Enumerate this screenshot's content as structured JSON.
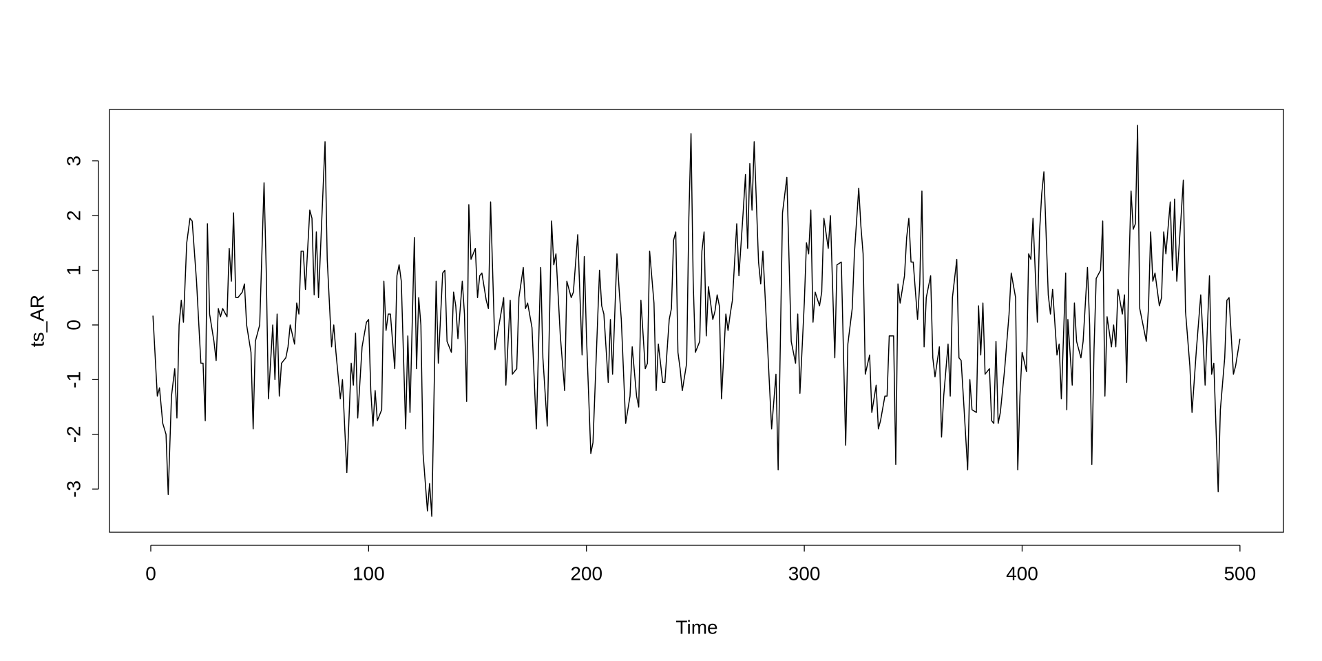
{
  "chart_data": {
    "type": "line",
    "xlabel": "Time",
    "ylabel": "ts_AR",
    "color": "#000000",
    "xlim": [
      -18.96,
      519.96
    ],
    "xticks": [
      0,
      100,
      200,
      300,
      400,
      500
    ],
    "ylim": [
      -3.79,
      3.94
    ],
    "yticks": [
      -3,
      -2,
      -1,
      0,
      1,
      2,
      3
    ],
    "x": [
      1,
      3,
      4,
      5.5,
      7,
      8,
      9.5,
      11,
      12,
      13,
      14,
      15,
      16.5,
      18,
      19,
      21,
      23,
      24,
      25,
      26,
      27,
      29,
      30,
      31,
      32,
      33,
      35,
      36,
      37,
      38,
      39,
      40,
      42,
      43,
      44,
      46,
      47,
      48,
      50,
      52,
      53,
      54,
      56,
      57,
      58,
      59,
      60,
      62,
      63,
      64,
      66,
      67,
      68,
      69,
      70,
      71,
      73,
      74,
      75,
      76,
      77,
      79,
      80,
      81,
      83,
      84,
      85,
      87,
      88,
      90,
      92,
      93,
      94,
      95,
      97,
      99,
      100,
      101,
      102,
      103,
      104,
      106,
      107,
      108,
      109,
      110,
      112,
      113,
      114,
      115,
      117,
      118,
      119,
      121,
      122,
      123,
      124,
      125,
      127,
      128,
      129,
      131,
      132,
      134,
      135,
      136,
      138,
      139,
      140,
      141,
      143,
      144,
      145,
      146,
      147,
      149,
      150,
      151,
      152,
      154,
      155,
      156,
      158,
      159,
      162,
      163,
      165,
      166,
      168,
      169,
      171,
      172,
      173,
      175,
      177,
      179,
      180,
      182,
      184,
      185,
      186,
      188,
      190,
      191,
      193,
      194,
      196,
      198,
      199,
      200,
      202,
      203,
      206,
      207,
      208,
      210,
      211,
      212,
      214,
      215,
      216,
      218,
      220,
      221,
      223,
      224,
      225,
      227,
      228,
      229,
      231,
      232,
      233,
      235,
      236,
      238,
      239,
      240,
      241,
      242,
      243,
      244,
      246,
      247,
      248,
      249,
      250,
      252,
      253,
      254,
      255,
      256,
      258,
      259,
      260,
      261,
      262,
      264,
      265,
      266,
      267,
      269,
      270,
      272,
      273,
      274,
      275,
      276,
      277,
      279,
      280,
      281,
      285,
      287,
      288,
      289,
      290,
      292,
      294,
      296,
      297,
      298,
      300,
      301,
      302,
      303,
      304,
      305,
      307,
      308,
      309,
      311,
      312,
      313,
      314,
      315,
      317,
      319,
      320,
      322,
      323,
      325,
      326,
      327,
      328,
      330,
      331,
      333,
      334,
      335,
      337,
      338,
      339,
      341,
      342,
      343,
      344,
      346,
      347,
      348,
      349,
      350,
      352,
      353,
      354,
      355,
      356,
      358,
      359,
      360,
      362,
      363,
      364,
      366,
      367,
      368,
      370,
      371,
      372,
      373,
      375,
      376,
      377,
      379,
      380,
      381,
      382,
      383,
      385,
      386,
      387,
      388,
      389,
      390,
      392,
      393,
      394,
      395,
      397,
      398,
      399,
      400,
      402,
      403,
      404,
      405,
      407,
      408,
      409,
      410,
      412,
      413,
      414,
      416,
      417,
      418,
      420,
      420.5,
      421,
      423,
      424,
      425,
      427,
      428,
      430,
      431,
      432,
      433,
      434,
      436,
      437,
      438,
      439,
      441,
      442,
      443,
      444,
      446,
      447,
      448,
      449,
      450,
      451,
      452,
      453,
      454,
      457,
      458,
      459,
      460,
      461,
      463,
      464,
      465,
      466,
      468,
      469,
      470,
      471,
      473,
      474,
      475,
      477,
      478,
      480,
      482,
      483,
      484,
      486,
      487,
      488,
      490,
      491,
      493,
      494,
      495,
      497,
      498,
      500
    ],
    "values": [
      0.17,
      -1.3,
      -1.15,
      -1.8,
      -2.0,
      -3.1,
      -1.3,
      -0.8,
      -1.7,
      0,
      0.45,
      0.05,
      1.5,
      1.95,
      1.9,
      0.8,
      -0.7,
      -0.7,
      -1.75,
      1.85,
      0.2,
      -0.3,
      -0.65,
      0.3,
      0.15,
      0.3,
      0.15,
      1.4,
      0.8,
      2.05,
      0.5,
      0.5,
      0.6,
      0.75,
      0,
      -0.5,
      -1.9,
      -0.3,
      0,
      2.6,
      1.0,
      -1.35,
      0,
      -1.0,
      0.2,
      -1.3,
      -0.7,
      -0.6,
      -0.4,
      0,
      -0.35,
      0.4,
      0.2,
      1.35,
      1.35,
      0.65,
      2.1,
      1.95,
      0.55,
      1.7,
      0.5,
      2.4,
      3.35,
      1.2,
      -0.4,
      0,
      -0.5,
      -1.35,
      -1.0,
      -2.7,
      -0.7,
      -1.1,
      -0.15,
      -1.7,
      -0.4,
      0.05,
      0.1,
      -1.2,
      -1.85,
      -1.2,
      -1.75,
      -1.55,
      0.8,
      -0.1,
      0.2,
      0.2,
      -0.8,
      0.9,
      1.1,
      0.8,
      -1.9,
      -0.2,
      -1.6,
      1.6,
      -0.8,
      0.5,
      0,
      -2.35,
      -3.4,
      -2.9,
      -3.5,
      0.8,
      -0.7,
      0.95,
      1.0,
      -0.3,
      -0.5,
      0.6,
      0.35,
      -0.25,
      0.8,
      0.2,
      -1.4,
      2.2,
      1.2,
      1.4,
      0.5,
      0.9,
      0.95,
      0.45,
      0.3,
      2.25,
      -0.45,
      -0.2,
      0.5,
      -1.1,
      0.45,
      -0.9,
      -0.8,
      0.5,
      1.05,
      0.3,
      0.4,
      -0.05,
      -1.9,
      1.05,
      -0.6,
      -1.85,
      1.9,
      1.1,
      1.3,
      -0.2,
      -1.2,
      0.8,
      0.5,
      0.6,
      1.65,
      -0.55,
      1.25,
      -0.2,
      -2.35,
      -2.15,
      1.0,
      0.35,
      0.2,
      -1.05,
      0.1,
      -0.9,
      1.3,
      0.65,
      0.1,
      -1.8,
      -1.3,
      -0.4,
      -1.3,
      -1.5,
      0.45,
      -0.8,
      -0.7,
      1.35,
      0.4,
      -1.2,
      -0.35,
      -1.05,
      -1.05,
      0.1,
      0.3,
      1.55,
      1.7,
      -0.5,
      -0.8,
      -1.2,
      -0.7,
      1.95,
      3.5,
      0.8,
      -0.5,
      -0.3,
      1.35,
      1.7,
      -0.2,
      0.7,
      0.1,
      0.25,
      0.55,
      0.35,
      -1.35,
      0.2,
      -0.1,
      0.2,
      0.45,
      1.85,
      0.9,
      2.1,
      2.75,
      1.4,
      2.95,
      2.1,
      3.35,
      1.15,
      0.75,
      1.35,
      -1.9,
      -0.9,
      -2.65,
      -0.35,
      2.05,
      2.7,
      -0.3,
      -0.7,
      0.2,
      -1.25,
      0.4,
      1.5,
      1.3,
      2.1,
      0.05,
      0.6,
      0.35,
      0.6,
      1.95,
      1.4,
      2.0,
      0.7,
      -0.6,
      1.1,
      1.15,
      -2.2,
      -0.35,
      0.3,
      1.3,
      2.5,
      1.8,
      1.3,
      -0.9,
      -0.55,
      -1.6,
      -1.1,
      -1.9,
      -1.75,
      -1.3,
      -1.3,
      -0.2,
      -0.2,
      -2.55,
      0.75,
      0.4,
      0.9,
      1.6,
      1.95,
      1.15,
      1.15,
      0.1,
      0.75,
      2.45,
      -0.4,
      0.5,
      0.9,
      -0.6,
      -0.95,
      -0.4,
      -2.05,
      -1.3,
      -0.35,
      -1.3,
      0.5,
      1.2,
      -0.6,
      -0.65,
      -1.3,
      -2.65,
      -1.0,
      -1.55,
      -1.6,
      0.35,
      -0.55,
      0.4,
      -0.9,
      -0.8,
      -1.75,
      -1.8,
      -0.3,
      -1.8,
      -1.6,
      -0.8,
      -0.3,
      0.2,
      0.95,
      0.5,
      -2.65,
      -1.3,
      -0.5,
      -0.85,
      1.3,
      1.2,
      1.95,
      0.05,
      1.7,
      2.4,
      2.8,
      0.55,
      0.2,
      0.65,
      -0.55,
      -0.35,
      -1.35,
      0.95,
      -1.55,
      0.1,
      -1.1,
      0.4,
      -0.3,
      -0.6,
      -0.3,
      1.05,
      0.0,
      -2.55,
      -0.45,
      0.85,
      1.0,
      1.9,
      -1.3,
      0.15,
      -0.4,
      0.0,
      -0.4,
      0.65,
      0.2,
      0.55,
      -1.05,
      1.0,
      2.45,
      1.75,
      1.85,
      3.65,
      0.3,
      -0.3,
      0.3,
      1.7,
      0.8,
      0.95,
      0.35,
      0.5,
      1.7,
      1.3,
      2.25,
      1.0,
      2.3,
      0.8,
      2.0,
      2.65,
      0.25,
      -0.75,
      -1.6,
      -0.45,
      0.55,
      -0.2,
      -1.1,
      0.9,
      -0.9,
      -0.7,
      -3.05,
      -1.55,
      -0.6,
      0.45,
      0.5,
      -0.9,
      -0.75,
      -0.25
    ]
  }
}
